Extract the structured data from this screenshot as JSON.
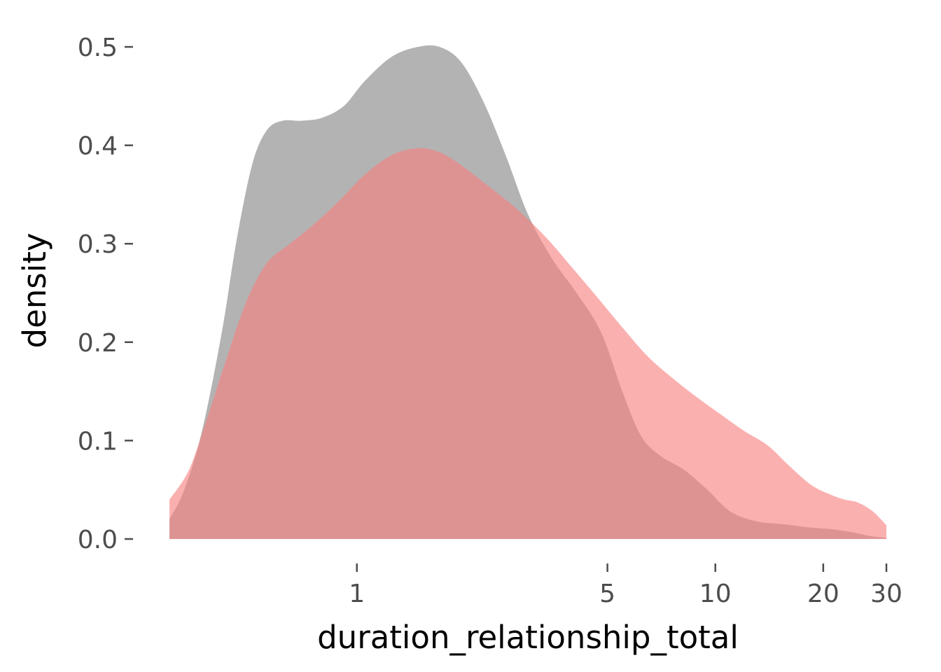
{
  "chart_data": {
    "type": "area",
    "title": "",
    "xlabel": "duration_relationship_total",
    "ylabel": "density",
    "x_scale": "log",
    "xlim": [
      0.3,
      30
    ],
    "ylim": [
      0,
      0.52
    ],
    "x_ticks": [
      {
        "value": 1,
        "label": "1"
      },
      {
        "value": 5,
        "label": "5"
      },
      {
        "value": 10,
        "label": "10"
      },
      {
        "value": 20,
        "label": "20"
      },
      {
        "value": 30,
        "label": "30"
      }
    ],
    "y_ticks": [
      {
        "value": 0.0,
        "label": "0.0"
      },
      {
        "value": 0.1,
        "label": "0.1"
      },
      {
        "value": 0.2,
        "label": "0.2"
      },
      {
        "value": 0.3,
        "label": "0.3"
      },
      {
        "value": 0.4,
        "label": "0.4"
      },
      {
        "value": 0.5,
        "label": "0.5"
      }
    ],
    "grid": false,
    "legend": "none",
    "series": [
      {
        "color": "#999999",
        "opacity": 0.75,
        "points": [
          [
            0.3,
            0.02
          ],
          [
            0.33,
            0.05
          ],
          [
            0.37,
            0.11
          ],
          [
            0.42,
            0.21
          ],
          [
            0.46,
            0.3
          ],
          [
            0.51,
            0.38
          ],
          [
            0.56,
            0.415
          ],
          [
            0.62,
            0.425
          ],
          [
            0.7,
            0.425
          ],
          [
            0.8,
            0.428
          ],
          [
            0.92,
            0.44
          ],
          [
            1.05,
            0.465
          ],
          [
            1.25,
            0.49
          ],
          [
            1.48,
            0.5
          ],
          [
            1.7,
            0.5
          ],
          [
            1.95,
            0.485
          ],
          [
            2.25,
            0.445
          ],
          [
            2.6,
            0.39
          ],
          [
            3.0,
            0.33
          ],
          [
            3.5,
            0.285
          ],
          [
            4.1,
            0.25
          ],
          [
            4.8,
            0.21
          ],
          [
            5.5,
            0.15
          ],
          [
            6.2,
            0.105
          ],
          [
            7.0,
            0.085
          ],
          [
            8.2,
            0.07
          ],
          [
            9.5,
            0.05
          ],
          [
            11.0,
            0.028
          ],
          [
            13.0,
            0.018
          ],
          [
            15.5,
            0.015
          ],
          [
            18.0,
            0.012
          ],
          [
            21.0,
            0.01
          ],
          [
            24.0,
            0.007
          ],
          [
            27.0,
            0.003
          ],
          [
            30.0,
            0.001
          ]
        ]
      },
      {
        "color": "#f98080",
        "opacity": 0.62,
        "points": [
          [
            0.3,
            0.04
          ],
          [
            0.34,
            0.07
          ],
          [
            0.38,
            0.12
          ],
          [
            0.43,
            0.18
          ],
          [
            0.49,
            0.24
          ],
          [
            0.56,
            0.28
          ],
          [
            0.65,
            0.3
          ],
          [
            0.76,
            0.32
          ],
          [
            0.9,
            0.345
          ],
          [
            1.05,
            0.37
          ],
          [
            1.25,
            0.39
          ],
          [
            1.48,
            0.397
          ],
          [
            1.7,
            0.393
          ],
          [
            1.95,
            0.38
          ],
          [
            2.3,
            0.36
          ],
          [
            2.8,
            0.335
          ],
          [
            3.4,
            0.305
          ],
          [
            4.0,
            0.275
          ],
          [
            4.7,
            0.245
          ],
          [
            5.5,
            0.215
          ],
          [
            6.5,
            0.185
          ],
          [
            7.8,
            0.16
          ],
          [
            9.2,
            0.14
          ],
          [
            10.5,
            0.125
          ],
          [
            12.0,
            0.11
          ],
          [
            14.0,
            0.095
          ],
          [
            16.0,
            0.075
          ],
          [
            18.5,
            0.055
          ],
          [
            21.0,
            0.045
          ],
          [
            23.0,
            0.04
          ],
          [
            25.0,
            0.037
          ],
          [
            27.5,
            0.028
          ],
          [
            30.0,
            0.014
          ]
        ]
      }
    ]
  }
}
